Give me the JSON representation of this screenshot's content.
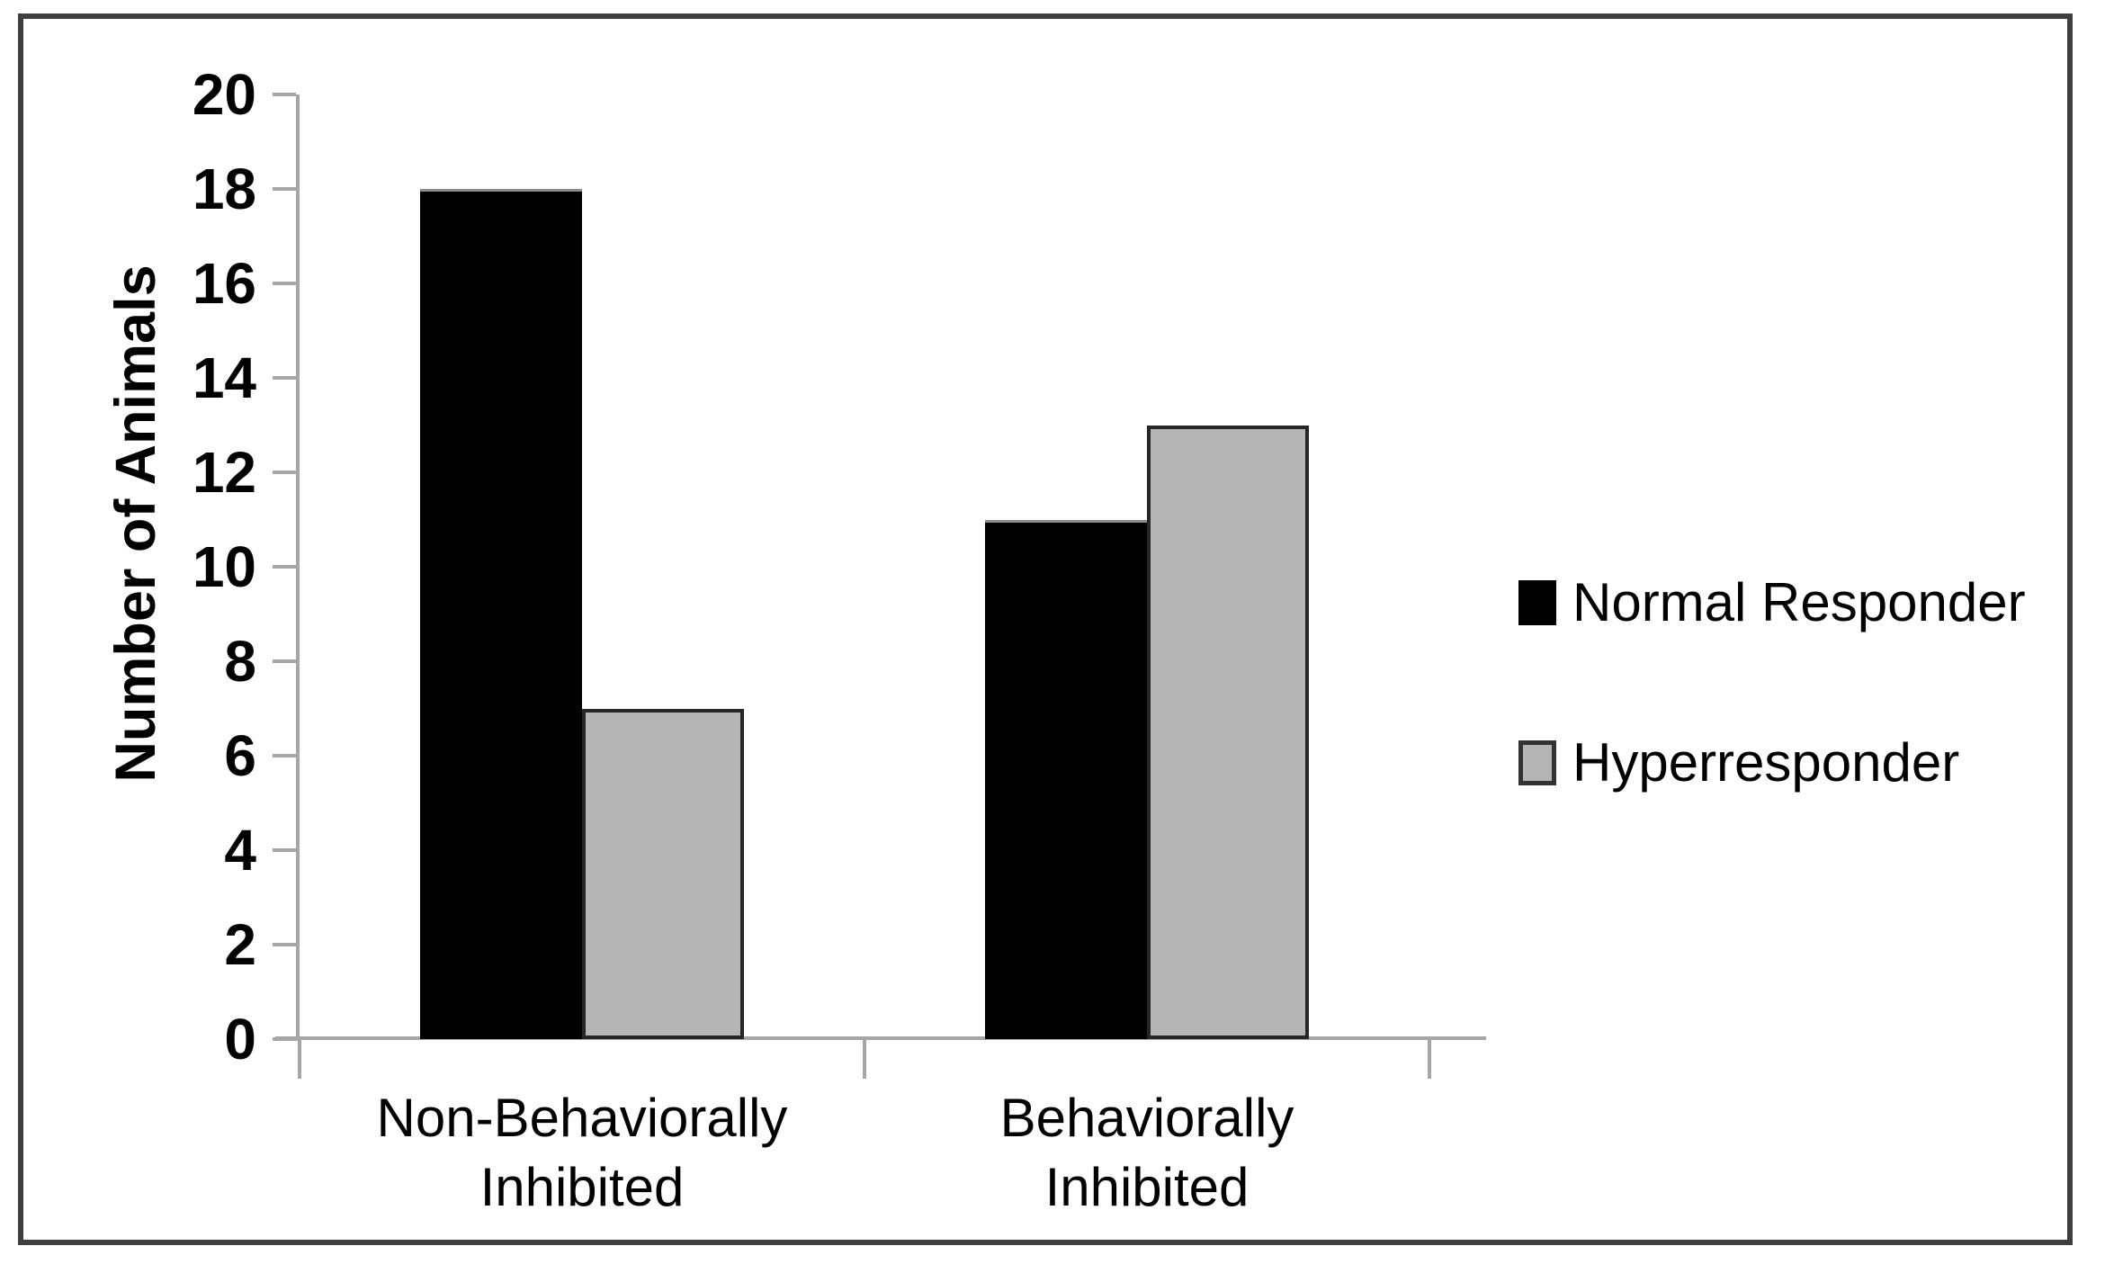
{
  "figure": {
    "background": "#ffffff",
    "frame_color": "#3f3f3f"
  },
  "chart_data": {
    "type": "bar",
    "title": "",
    "xlabel": "",
    "ylabel": "Number of Animals",
    "ylim": [
      0,
      20
    ],
    "ytick_step": 2,
    "yticks": [
      0,
      2,
      4,
      6,
      8,
      10,
      12,
      14,
      16,
      18,
      20
    ],
    "categories": [
      "Non-Behaviorally Inhibited",
      "Behaviorally Inhibited"
    ],
    "series": [
      {
        "name": "Normal Responder",
        "color": "#000000",
        "bar_border": "#8c8c8c",
        "swatch_border": "",
        "values": [
          18,
          11
        ]
      },
      {
        "name": "Hyperresponder",
        "color": "#b5b5b5",
        "bar_border": "#262626",
        "swatch_border": "#333333",
        "values": [
          7,
          13
        ]
      }
    ],
    "grid": false,
    "legend_position": "right",
    "axis_color": "#a6a6a6",
    "text_color": "#000000"
  }
}
